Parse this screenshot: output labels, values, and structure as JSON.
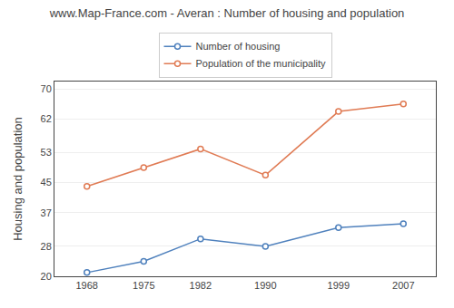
{
  "chart_data": {
    "type": "line",
    "title": "www.Map-France.com - Averan : Number of housing and population",
    "y_label": "Housing and population",
    "x": [
      1968,
      1975,
      1982,
      1990,
      1999,
      2007
    ],
    "series": [
      {
        "name": "Number of housing",
        "color": "#4f81bd",
        "values": [
          21,
          24,
          30,
          28,
          33,
          34
        ],
        "marker": "circle"
      },
      {
        "name": "Population of the municipality",
        "color": "#e07b54",
        "values": [
          44,
          49,
          54,
          47,
          64,
          66
        ],
        "marker": "circle"
      }
    ],
    "xlim": [
      1964,
      2011
    ],
    "xticks": [
      1968,
      1975,
      1982,
      1990,
      1999,
      2007
    ],
    "ylim": [
      20,
      72
    ],
    "yticks": [
      20,
      28,
      37,
      45,
      53,
      62,
      70
    ],
    "grid": "y",
    "legend": "top"
  }
}
